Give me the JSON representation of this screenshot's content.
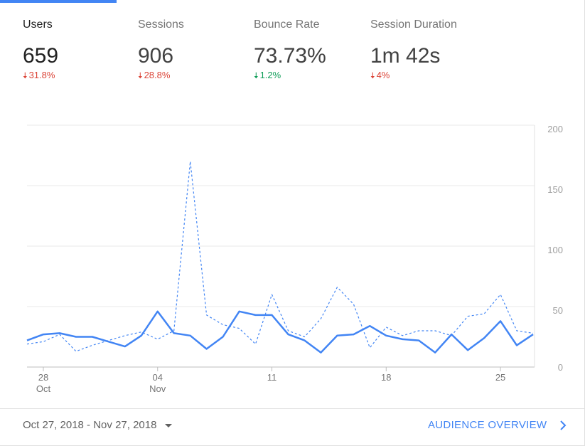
{
  "metrics": [
    {
      "label": "Users",
      "value": "659",
      "change": "31.8%",
      "direction": "down",
      "color": "#db4437"
    },
    {
      "label": "Sessions",
      "value": "906",
      "change": "28.8%",
      "direction": "down",
      "color": "#db4437"
    },
    {
      "label": "Bounce Rate",
      "value": "73.73%",
      "change": "1.2%",
      "direction": "down",
      "color": "#0f9d58"
    },
    {
      "label": "Session Duration",
      "value": "1m 42s",
      "change": "4%",
      "direction": "down",
      "color": "#db4437"
    }
  ],
  "footer": {
    "date_range": "Oct 27, 2018 - Nov 27, 2018",
    "overview_link": "AUDIENCE OVERVIEW"
  },
  "icons": {
    "down_arrow": "arrow-down-icon",
    "dropdown": "caret-down-icon",
    "link_chevron": "chevron-right-icon"
  },
  "colors": {
    "accent": "#4285f4",
    "negative": "#db4437",
    "positive": "#0f9d58"
  },
  "chart_data": {
    "type": "line",
    "title": "",
    "xlabel": "",
    "ylabel": "",
    "ylim": [
      0,
      200
    ],
    "yticks": [
      0,
      50,
      100,
      150,
      200
    ],
    "y_axis_position": "right",
    "grid": true,
    "legend": "none",
    "xtick_labels": [
      {
        "index": 1,
        "label": "28",
        "sublabel": "Oct"
      },
      {
        "index": 8,
        "label": "04",
        "sublabel": "Nov"
      },
      {
        "index": 15,
        "label": "11",
        "sublabel": ""
      },
      {
        "index": 22,
        "label": "18",
        "sublabel": ""
      },
      {
        "index": 29,
        "label": "25",
        "sublabel": ""
      }
    ],
    "x": [
      "Oct 27",
      "Oct 28",
      "Oct 29",
      "Oct 30",
      "Oct 31",
      "Nov 1",
      "Nov 2",
      "Nov 3",
      "Nov 4",
      "Nov 5",
      "Nov 6",
      "Nov 7",
      "Nov 8",
      "Nov 9",
      "Nov 10",
      "Nov 11",
      "Nov 12",
      "Nov 13",
      "Nov 14",
      "Nov 15",
      "Nov 16",
      "Nov 17",
      "Nov 18",
      "Nov 19",
      "Nov 20",
      "Nov 21",
      "Nov 22",
      "Nov 23",
      "Nov 24",
      "Nov 25",
      "Nov 26",
      "Nov 27"
    ],
    "series": [
      {
        "style": "solid",
        "color": "#4285f4",
        "values": [
          22,
          27,
          28,
          25,
          25,
          21,
          17,
          26,
          46,
          28,
          26,
          15,
          25,
          46,
          43,
          43,
          27,
          22,
          12,
          26,
          27,
          34,
          26,
          23,
          22,
          12,
          27,
          14,
          24,
          38,
          18,
          27
        ]
      },
      {
        "style": "dashed",
        "color": "#4285f4",
        "values": [
          19,
          21,
          27,
          13,
          18,
          22,
          26,
          29,
          23,
          30,
          170,
          43,
          35,
          32,
          19,
          60,
          30,
          25,
          40,
          66,
          52,
          16,
          33,
          26,
          30,
          30,
          26,
          42,
          44,
          60,
          30,
          28
        ]
      }
    ]
  }
}
